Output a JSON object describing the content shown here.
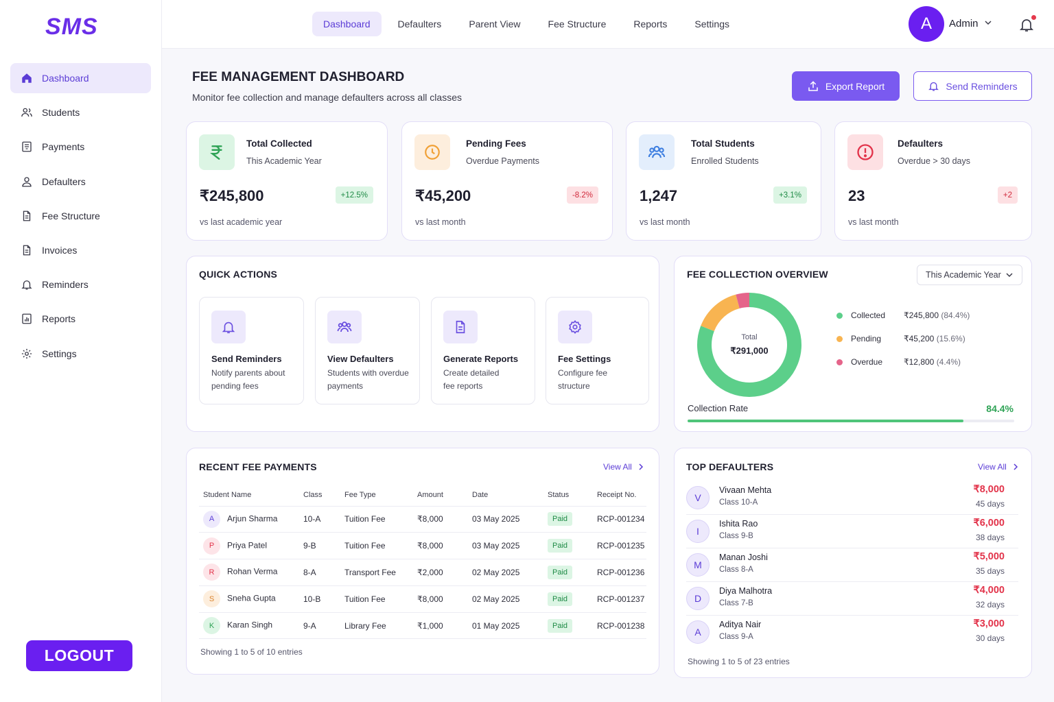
{
  "app": {
    "logo": "SMS",
    "logout_label": "LOGOUT"
  },
  "sidebar": {
    "items": [
      {
        "label": "Dashboard",
        "icon": "home-icon",
        "active": true
      },
      {
        "label": "Students",
        "icon": "users-icon"
      },
      {
        "label": "Payments",
        "icon": "receipt-icon"
      },
      {
        "label": "Defaulters",
        "icon": "user-icon"
      },
      {
        "label": "Fee Structure",
        "icon": "document-icon"
      },
      {
        "label": "Invoices",
        "icon": "document-icon"
      },
      {
        "label": "Reminders",
        "icon": "bell-icon"
      },
      {
        "label": "Reports",
        "icon": "chart-icon"
      },
      {
        "label": "Settings",
        "icon": "gear-icon"
      }
    ]
  },
  "topnav": {
    "tabs": [
      "Dashboard",
      "Defaulters",
      "Parent View",
      "Fee Structure",
      "Reports",
      "Settings"
    ],
    "avatar_initial": "A",
    "user_label": "Admin"
  },
  "header": {
    "title": "FEE MANAGEMENT DASHBOARD",
    "subtitle": "Monitor fee collection and manage defaulters across all classes",
    "export_label": "Export Report",
    "remind_label": "Send Reminders"
  },
  "stats": [
    {
      "title": "Total Collected",
      "sub": "This Academic Year",
      "value": "₹245,800",
      "badge": "+12.5%",
      "trend": "up",
      "foot": "vs last academic year",
      "icon": "rupee-icon",
      "color": "#2fa356"
    },
    {
      "title": "Pending Fees",
      "sub": "Overdue Payments",
      "value": "₹45,200",
      "badge": "-8.2%",
      "trend": "down",
      "foot": "vs last month",
      "icon": "clock-icon",
      "color": "#f0a035"
    },
    {
      "title": "Total Students",
      "sub": "Enrolled Students",
      "value": "1,247",
      "badge": "+3.1%",
      "trend": "up",
      "foot": "vs last month",
      "icon": "users-icon",
      "color": "#3d7ee0"
    },
    {
      "title": "Defaulters",
      "sub": "Overdue > 30 days",
      "value": "23",
      "badge": "+2",
      "trend": "down",
      "foot": "vs last month",
      "icon": "alert-icon",
      "color": "#e2334a"
    }
  ],
  "quick_actions": {
    "title": "QUICK ACTIONS",
    "items": [
      {
        "title": "Send Reminders",
        "desc": "Notify parents about pending fees",
        "icon": "bell-icon"
      },
      {
        "title": "View Defaulters",
        "desc": "Students with overdue payments",
        "icon": "users-icon"
      },
      {
        "title": "Generate Reports",
        "desc": "Create detailed fee reports",
        "icon": "document-icon"
      },
      {
        "title": "Fee Settings",
        "desc": "Configure fee structure",
        "icon": "gear-icon"
      }
    ]
  },
  "overview": {
    "title": "FEE COLLECTION OVERVIEW",
    "period": "This Academic Year",
    "total_label": "Total",
    "total_value": "₹291,000",
    "rate_label": "Collection Rate",
    "rate_value": "84.4%",
    "rate_fraction": 0.844
  },
  "chart_data": {
    "type": "pie",
    "categories": [
      "Collected",
      "Pending",
      "Overdue"
    ],
    "values": [
      245800,
      45200,
      12800
    ],
    "display_values": [
      "₹245,800",
      "₹45,200",
      "₹12,800"
    ],
    "percents": [
      "(84.4%)",
      "(15.6%)",
      "(4.4%)"
    ],
    "colors": [
      "#5ccf8a",
      "#f8b451",
      "#e5648a"
    ]
  },
  "payments": {
    "title": "RECENT FEE PAYMENTS",
    "view_all": "View All",
    "columns": [
      "Student Name",
      "Class",
      "Fee Type",
      "Amount",
      "Date",
      "Status",
      "Receipt No."
    ],
    "rows": [
      {
        "initial": "A",
        "name": "Arjun Sharma",
        "class": "10-A",
        "type": "Tuition Fee",
        "amount": "₹8,000",
        "date": "03 May 2025",
        "status": "Paid",
        "receipt": "RCP-001234",
        "color": "#5b3cd6",
        "bg": "#ede9fc"
      },
      {
        "initial": "P",
        "name": "Priya Patel",
        "class": "9-B",
        "type": "Tuition Fee",
        "amount": "₹8,000",
        "date": "03 May 2025",
        "status": "Paid",
        "receipt": "RCP-001235",
        "color": "#e2334a",
        "bg": "#fde4e8"
      },
      {
        "initial": "R",
        "name": "Rohan Verma",
        "class": "8-A",
        "type": "Transport Fee",
        "amount": "₹2,000",
        "date": "02 May 2025",
        "status": "Paid",
        "receipt": "RCP-001236",
        "color": "#e2334a",
        "bg": "#fde4e8"
      },
      {
        "initial": "S",
        "name": "Sneha Gupta",
        "class": "10-B",
        "type": "Tuition Fee",
        "amount": "₹8,000",
        "date": "02 May 2025",
        "status": "Paid",
        "receipt": "RCP-001237",
        "color": "#d9822b",
        "bg": "#fdeedd"
      },
      {
        "initial": "K",
        "name": "Karan Singh",
        "class": "9-A",
        "type": "Library Fee",
        "amount": "₹1,000",
        "date": "01 May 2025",
        "status": "Paid",
        "receipt": "RCP-001238",
        "color": "#2fa356",
        "bg": "#dcf5e4"
      }
    ],
    "footer": "Showing 1 to 5 of 10 entries"
  },
  "defaulters": {
    "title": "TOP DEFAULTERS",
    "view_all": "View All",
    "rows": [
      {
        "initial": "V",
        "name": "Vivaan Mehta",
        "class": "Class 10-A",
        "amount": "₹8,000",
        "days": "45 days"
      },
      {
        "initial": "I",
        "name": "Ishita Rao",
        "class": "Class 9-B",
        "amount": "₹6,000",
        "days": "38 days"
      },
      {
        "initial": "M",
        "name": "Manan Joshi",
        "class": "Class 8-A",
        "amount": "₹5,000",
        "days": "35 days"
      },
      {
        "initial": "D",
        "name": "Diya Malhotra",
        "class": "Class 7-B",
        "amount": "₹4,000",
        "days": "32 days"
      },
      {
        "initial": "A",
        "name": "Aditya Nair",
        "class": "Class 9-A",
        "amount": "₹3,000",
        "days": "30 days"
      }
    ],
    "footer": "Showing 1 to 5 of 23 entries"
  }
}
